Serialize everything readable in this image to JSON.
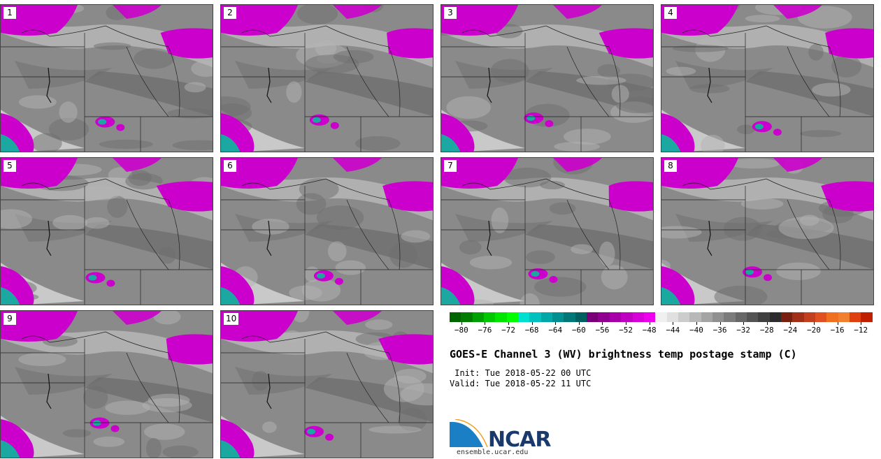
{
  "panels": [
    {
      "label": "1"
    },
    {
      "label": "2"
    },
    {
      "label": "3"
    },
    {
      "label": "4"
    },
    {
      "label": "5"
    },
    {
      "label": "6"
    },
    {
      "label": "7"
    },
    {
      "label": "8"
    },
    {
      "label": "9"
    },
    {
      "label": "10"
    }
  ],
  "colorbar": {
    "colors": [
      "#006400",
      "#007d00",
      "#00a000",
      "#00c800",
      "#00e600",
      "#00ff00",
      "#00e0d0",
      "#00c0c0",
      "#00a8a8",
      "#009090",
      "#007878",
      "#006060",
      "#7a007a",
      "#900090",
      "#a800a8",
      "#c000c0",
      "#d800d8",
      "#ee00ee",
      "#f0f0f0",
      "#e0e0e0",
      "#cccccc",
      "#b8b8b8",
      "#a4a4a4",
      "#909090",
      "#7c7c7c",
      "#686868",
      "#545454",
      "#404040",
      "#2c2c2c",
      "#7a2010",
      "#a03018",
      "#c04020",
      "#e05020",
      "#f07020",
      "#f08030",
      "#e04010",
      "#c02000"
    ],
    "tick_labels": [
      "-80",
      "-76",
      "-72",
      "-68",
      "-64",
      "-60",
      "-56",
      "-52",
      "-48",
      "-44",
      "-40",
      "-36",
      "-32",
      "-28",
      "-24",
      "-20",
      "-16",
      "-12"
    ],
    "min": -82,
    "max": -10
  },
  "title": "GOES-E Channel 3 (WV) brightness temp postage stamp (C)",
  "init": " Init: Tue 2018-05-22 00 UTC",
  "valid": "Valid: Tue 2018-05-22 11 UTC",
  "logo": {
    "name": "NCAR",
    "url": "ensemble.ucar.edu"
  },
  "colors": {
    "magenta": "#cc00cc",
    "teal": "#1aa8a0",
    "gray_dark": "#6e6e6e",
    "gray_mid": "#8a8a8a",
    "gray_light": "#b4b4b4"
  }
}
